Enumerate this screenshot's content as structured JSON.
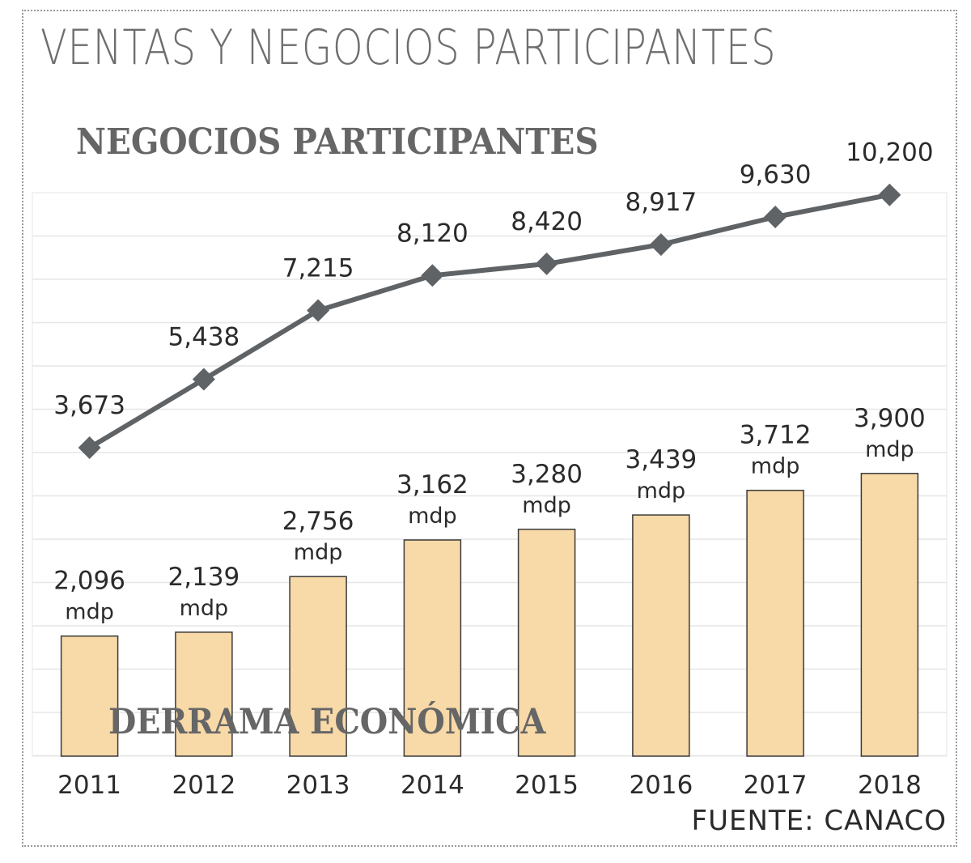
{
  "title": "VENTAS Y NEGOCIOS PARTICIPANTES",
  "source": "FUENTE: CANACO",
  "chart_data": {
    "type": "bar",
    "categories": [
      "2011",
      "2012",
      "2013",
      "2014",
      "2015",
      "2016",
      "2017",
      "2018"
    ],
    "series": [
      {
        "name": "NEGOCIOS PARTICIPANTES",
        "kind": "line",
        "values": [
          3673,
          5438,
          7215,
          8120,
          8420,
          8917,
          9630,
          10200
        ],
        "labels": [
          "3,673",
          "5,438",
          "7,215",
          "8,120",
          "8,420",
          "8,917",
          "9,630",
          "10,200"
        ],
        "color": "#5f6366"
      },
      {
        "name": "DERRAMA ECONÓMICA",
        "kind": "bar",
        "values": [
          2096,
          2139,
          2756,
          3162,
          3280,
          3439,
          3712,
          3900
        ],
        "labels": [
          "2,096",
          "2,139",
          "2,756",
          "3,162",
          "3,280",
          "3,439",
          "3,712",
          "3,900"
        ],
        "unit": "mdp",
        "color": "#f8d9a8"
      }
    ],
    "grid": true,
    "legend": "none"
  }
}
